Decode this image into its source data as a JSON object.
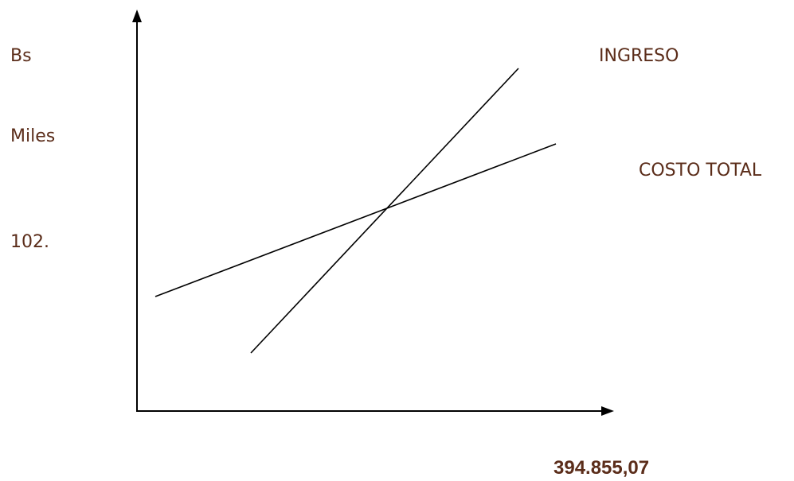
{
  "chart_data": {
    "type": "line",
    "ylabel_lines": [
      "Bs",
      "Miles"
    ],
    "y_value_label": "102.",
    "x_value_label": "394.855,07",
    "series": [
      {
        "name": "INGRESO",
        "color": "#000000"
      },
      {
        "name": "COSTO TOTAL",
        "color": "#000000"
      }
    ],
    "grid": false,
    "colors": {
      "text": "#5b2d1a",
      "axis": "#000000"
    }
  }
}
